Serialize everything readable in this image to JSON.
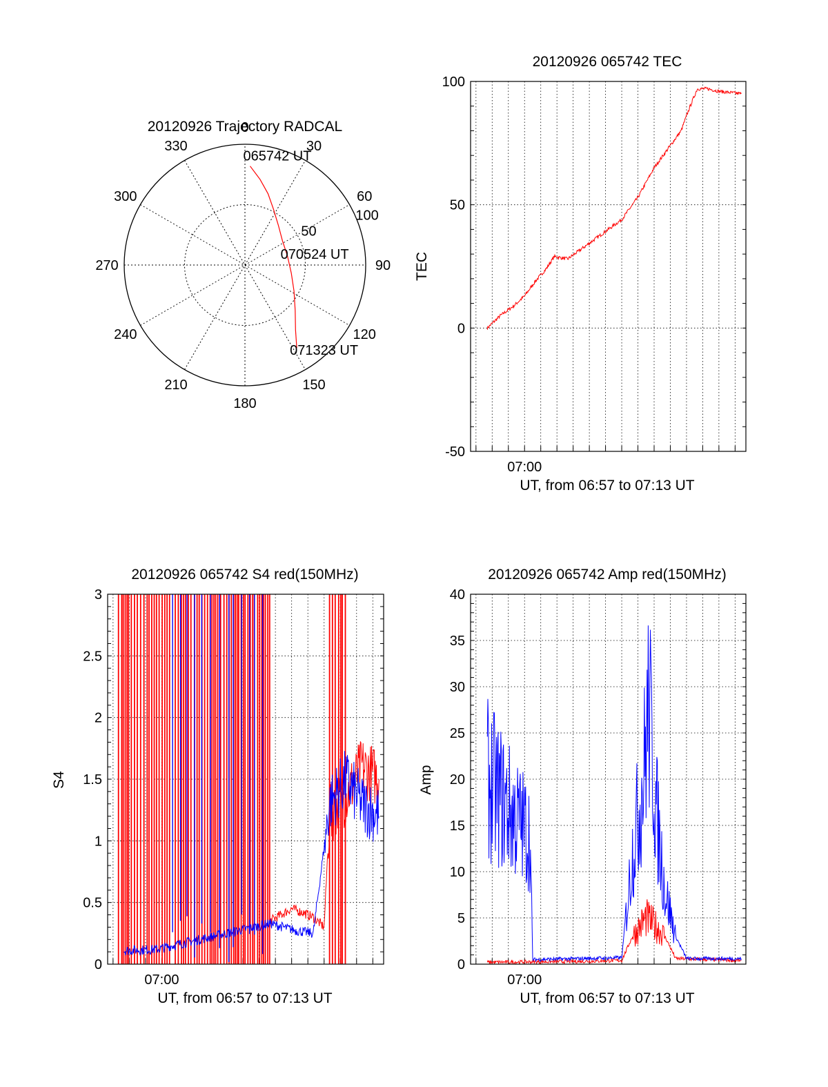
{
  "colors": {
    "red": "#ff0000",
    "blue": "#0000ff",
    "axis": "#000000"
  },
  "chart_data": [
    {
      "type": "polar",
      "title": "20120926 Trajectory RADCAL",
      "angle_labels": [
        "0",
        "30",
        "60",
        "90",
        "120",
        "150",
        "180",
        "210",
        "240",
        "270",
        "300",
        "330"
      ],
      "radial_labels": [
        "50",
        "100"
      ],
      "rlim": [
        0,
        100
      ],
      "series": [
        {
          "color": "red",
          "points": [
            {
              "az": 3,
              "zen": 82
            },
            {
              "az": 10,
              "zen": 72
            },
            {
              "az": 18,
              "zen": 62
            },
            {
              "az": 27,
              "zen": 52
            },
            {
              "az": 40,
              "zen": 43
            },
            {
              "az": 57,
              "zen": 37
            },
            {
              "az": 78,
              "zen": 36
            },
            {
              "az": 100,
              "zen": 39
            },
            {
              "az": 118,
              "zen": 46
            },
            {
              "az": 132,
              "zen": 56
            },
            {
              "az": 142,
              "zen": 68
            },
            {
              "az": 148,
              "zen": 81
            }
          ]
        }
      ],
      "annotations": [
        {
          "text": "065742 UT",
          "az": 3,
          "zen": 82
        },
        {
          "text": "070524 UT",
          "az": 78,
          "zen": 36
        },
        {
          "text": "071323 UT",
          "az": 148,
          "zen": 81
        }
      ]
    },
    {
      "type": "line",
      "title": "20120926 065742 TEC",
      "xlabel": "UT, from 06:57 to 07:13 UT",
      "ylabel": "TEC",
      "xlim": [
        "06:56:40",
        "07:13:40"
      ],
      "ylim": [
        -50,
        100
      ],
      "yticks": [
        -50,
        0,
        50,
        100
      ],
      "xtick_labels": [
        {
          "t": "07:00:00",
          "label": "07:00"
        }
      ],
      "grid": true,
      "series": [
        {
          "color": "red",
          "points": [
            [
              "06:57:42",
              0
            ],
            [
              "06:58:30",
              5
            ],
            [
              "06:59:20",
              9
            ],
            [
              "07:00:00",
              13
            ],
            [
              "07:00:40",
              19
            ],
            [
              "07:01:20",
              24
            ],
            [
              "07:01:50",
              29
            ],
            [
              "07:02:40",
              28
            ],
            [
              "07:03:30",
              32
            ],
            [
              "07:04:20",
              36
            ],
            [
              "07:05:10",
              40
            ],
            [
              "07:06:00",
              44
            ],
            [
              "07:07:00",
              53
            ],
            [
              "07:08:00",
              65
            ],
            [
              "07:09:00",
              74
            ],
            [
              "07:09:40",
              80
            ],
            [
              "07:10:10",
              89
            ],
            [
              "07:10:40",
              97
            ],
            [
              "07:11:20",
              97
            ],
            [
              "07:12:00",
              96
            ],
            [
              "07:13:23",
              95
            ]
          ]
        }
      ]
    },
    {
      "type": "line",
      "title": "20120926 065742 S4 red(150MHz)",
      "xlabel": "UT, from 06:57 to 07:13 UT",
      "ylabel": "S4",
      "xlim": [
        "06:56:40",
        "07:13:40"
      ],
      "ylim": [
        0,
        3
      ],
      "yticks": [
        "0",
        "0.5",
        "1",
        "1.5",
        "2",
        "2.5",
        "3"
      ],
      "xtick_labels": [
        {
          "t": "07:00:00",
          "label": "07:00"
        }
      ],
      "grid": true,
      "saturated_spans": [
        {
          "color": "red",
          "from": "06:57:20",
          "to": "07:00:30"
        },
        {
          "color": "red",
          "from": "07:00:50",
          "to": "07:06:40"
        },
        {
          "color": "blue",
          "from": "07:00:40",
          "to": "07:06:40",
          "sparse": true
        },
        {
          "color": "red",
          "from": "07:10:20",
          "to": "07:11:20"
        }
      ],
      "series": [
        {
          "name": "",
          "color": "red",
          "points": [
            [
              "07:06:40",
              0.35
            ],
            [
              "07:07:20",
              0.4
            ],
            [
              "07:08:00",
              0.45
            ],
            [
              "07:08:40",
              0.42
            ],
            [
              "07:09:20",
              0.38
            ],
            [
              "07:10:00",
              0.3
            ],
            [
              "07:10:20",
              1.2
            ],
            [
              "07:11:30",
              1.4
            ],
            [
              "07:12:20",
              1.6
            ],
            [
              "07:13:23",
              1.5
            ]
          ]
        },
        {
          "name": "",
          "color": "blue",
          "points": [
            [
              "06:57:40",
              0.11
            ],
            [
              "06:59:40",
              0.12
            ],
            [
              "07:06:40",
              0.33
            ],
            [
              "07:07:30",
              0.3
            ],
            [
              "07:08:20",
              0.27
            ],
            [
              "07:09:20",
              0.25
            ],
            [
              "07:10:20",
              1.3
            ],
            [
              "07:11:20",
              1.5
            ],
            [
              "07:12:20",
              1.3
            ],
            [
              "07:13:23",
              1.2
            ]
          ]
        }
      ]
    },
    {
      "type": "line",
      "title": "20120926 065742 Amp red(150MHz)",
      "xlabel": "UT, from 06:57 to 07:13 UT",
      "ylabel": "Amp",
      "xlim": [
        "06:56:40",
        "07:13:40"
      ],
      "ylim": [
        0,
        40
      ],
      "yticks": [
        0,
        5,
        10,
        15,
        20,
        25,
        30,
        35,
        40
      ],
      "xtick_labels": [
        {
          "t": "07:00:00",
          "label": "07:00"
        }
      ],
      "grid": true,
      "series": [
        {
          "name": "",
          "color": "red",
          "points": [
            [
              "06:57:42",
              0.2
            ],
            [
              "07:03:30",
              0.3
            ],
            [
              "07:06:00",
              0.4
            ],
            [
              "07:06:40",
              3
            ],
            [
              "07:07:30",
              5
            ],
            [
              "07:08:10",
              4
            ],
            [
              "07:08:40",
              3
            ],
            [
              "07:09:20",
              0.6
            ],
            [
              "07:13:23",
              0.4
            ]
          ]
        },
        {
          "name": "",
          "color": "blue",
          "points": [
            [
              "06:57:42",
              20
            ],
            [
              "06:58:30",
              18
            ],
            [
              "06:59:20",
              16
            ],
            [
              "07:00:20",
              14
            ],
            [
              "07:00:30",
              0.5
            ],
            [
              "07:06:00",
              0.7
            ],
            [
              "07:06:40",
              12
            ],
            [
              "07:07:20",
              20
            ],
            [
              "07:07:40",
              28
            ],
            [
              "07:08:10",
              16
            ],
            [
              "07:08:40",
              8
            ],
            [
              "07:09:20",
              3
            ],
            [
              "07:10:00",
              0.6
            ],
            [
              "07:13:23",
              0.6
            ]
          ]
        }
      ]
    }
  ]
}
